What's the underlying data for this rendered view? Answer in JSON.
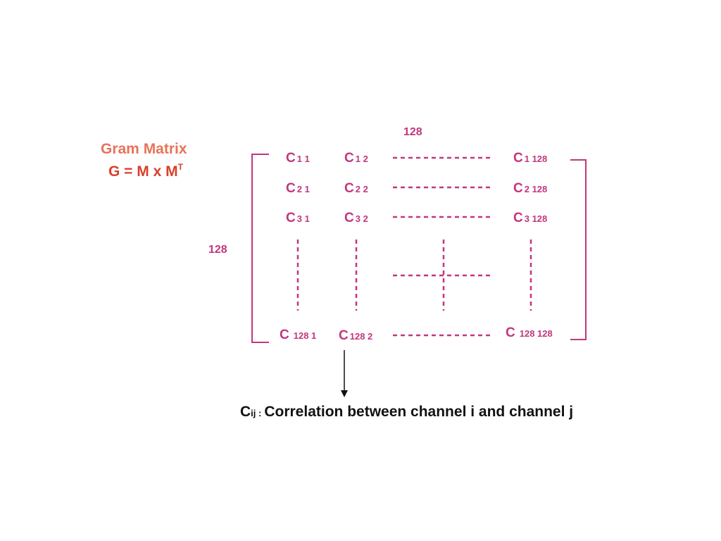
{
  "colors": {
    "title": "#E8735A",
    "formula": "#D9402B",
    "matrix": "#C2377E",
    "note": "#111111"
  },
  "title": "Gram Matrix",
  "formula": {
    "text": "G = M x M",
    "superscript": "T"
  },
  "dims": {
    "columns": "128",
    "rows": "128"
  },
  "cells": [
    {
      "base": "C",
      "sub": "1 1"
    },
    {
      "base": "C",
      "sub": "1 2"
    },
    {
      "base": "C",
      "sub": "1 128"
    },
    {
      "base": "C",
      "sub": "2 1"
    },
    {
      "base": "C",
      "sub": "2 2"
    },
    {
      "base": "C",
      "sub": "2 128"
    },
    {
      "base": "C",
      "sub": "3 1"
    },
    {
      "base": "C",
      "sub": "3 2"
    },
    {
      "base": "C",
      "sub": "3 128"
    },
    {
      "base": "C",
      "sub": "128 1"
    },
    {
      "base": "C",
      "sub": "128 2"
    },
    {
      "base": "C",
      "sub": "128 128"
    }
  ],
  "note": {
    "base": "C",
    "sub": "ij :",
    "text": "Correlation between channel i and channel j"
  }
}
